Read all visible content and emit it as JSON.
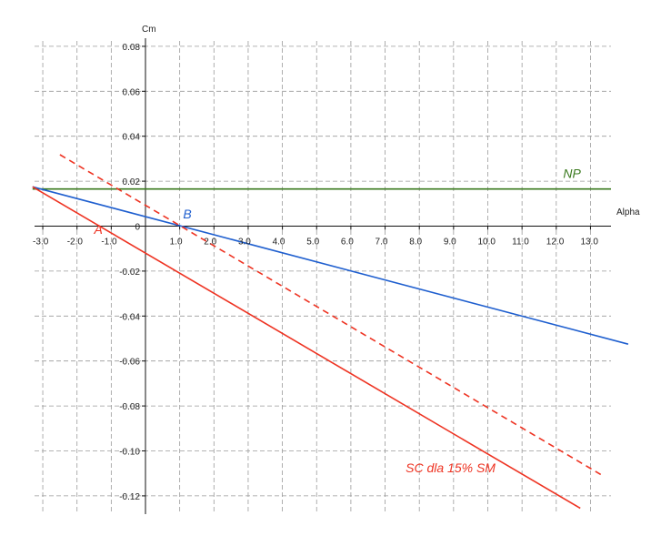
{
  "chart_data": {
    "type": "line",
    "xlabel": "Alpha",
    "ylabel": "Cm",
    "xlim": [
      -3.3,
      13.7
    ],
    "ylim": [
      -0.13,
      0.085
    ],
    "x_ticks": [
      -3,
      -2,
      -1,
      0,
      1,
      2,
      3,
      4,
      5,
      6,
      7,
      8,
      9,
      10,
      11,
      12,
      13
    ],
    "x_tick_labels": [
      "-3.0",
      "-2.0",
      "-1.0",
      "0",
      "1.0",
      "2.0",
      "3.0",
      "4.0",
      "5.0",
      "6.0",
      "7.0",
      "8.0",
      "9.0",
      "10.0",
      "11.0",
      "12.0",
      "13.0"
    ],
    "y_ticks": [
      0.08,
      0.06,
      0.04,
      0.02,
      0,
      -0.02,
      -0.04,
      -0.06,
      -0.08,
      -0.1,
      -0.12
    ],
    "y_tick_labels": [
      "0.08",
      "0.06",
      "0.04",
      "0.02",
      "0",
      "-0.02",
      "-0.04",
      "-0.06",
      "-0.08",
      "-0.10",
      "-0.12"
    ],
    "grid": true,
    "series": [
      {
        "color": "#3a7a1e",
        "style": "solid",
        "x": [
          -3.3,
          13.6
        ],
        "y": [
          0.0165,
          0.0165
        ]
      },
      {
        "color": "#1f5fcf",
        "style": "solid",
        "x": [
          -3.3,
          14.1
        ],
        "y": [
          0.0175,
          -0.0525
        ]
      },
      {
        "color": "#ee3322",
        "style": "solid",
        "x": [
          -3.3,
          12.7
        ],
        "y": [
          0.0175,
          -0.1255
        ]
      },
      {
        "color": "#ee3322",
        "style": "dashed",
        "x": [
          -2.5,
          13.3
        ],
        "y": [
          0.0318,
          -0.1105
        ]
      }
    ],
    "annotations": [
      {
        "text": "NP",
        "color": "#3a7a1e",
        "x": 12.2,
        "y": 0.0215
      },
      {
        "text": "B",
        "color": "#1f5fcf",
        "x": 1.1,
        "y": 0.0035
      },
      {
        "text": "A",
        "color": "#ee3322",
        "x": -1.5,
        "y": -0.0035
      },
      {
        "text": "SC dla 15% SM",
        "color": "#ee3322",
        "x": 7.6,
        "y": -0.1095
      }
    ]
  }
}
